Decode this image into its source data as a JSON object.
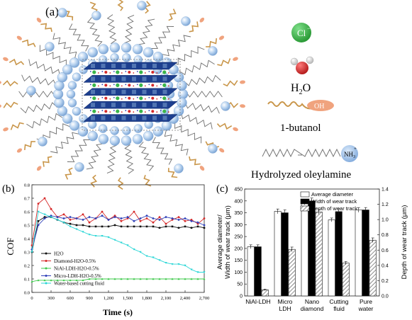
{
  "panel_a": {
    "label": "(a)",
    "legend": {
      "chloride": "Cl",
      "chloride_charge": "−",
      "water": "H",
      "water_sub": "2",
      "water_end": "O",
      "butanol_group": "OH",
      "butanol_label": "1-butanol",
      "oleylamine_group": "NH",
      "oleylamine_sub": "3",
      "oleylamine_charge": "+",
      "oleylamine_label": "Hydrolyzed oleylamine"
    },
    "colors": {
      "chloride": "#3bb54a",
      "water_oxygen": "#d42a2a",
      "butanol_tail": "#c9964a",
      "butanol_head": "#f0a37e",
      "oleylamine_head": "#8fb8e6",
      "ldh_layer": "#1d3f8f",
      "micelle_sphere": "#9ec1e8"
    }
  },
  "panel_b": {
    "label": "(b)",
    "chart_data": {
      "type": "line",
      "xlabel": "Time (s)",
      "ylabel": "COF",
      "xlim": [
        0,
        2700
      ],
      "ylim": [
        0,
        0.8
      ],
      "x_ticks": [
        "0",
        "300",
        "600",
        "900",
        "1,200",
        "1,500",
        "1,800",
        "2,100",
        "2,400",
        "2,700"
      ],
      "y_ticks": [
        "0.0",
        "0.1",
        "0.2",
        "0.3",
        "0.4",
        "0.5",
        "0.6",
        "0.7",
        "0.8"
      ],
      "x": [
        0,
        100,
        200,
        300,
        400,
        500,
        600,
        700,
        800,
        900,
        1000,
        1100,
        1200,
        1300,
        1400,
        1500,
        1600,
        1700,
        1800,
        1900,
        2000,
        2100,
        2200,
        2300,
        2400,
        2500,
        2600,
        2700
      ],
      "series": [
        {
          "name": "H2O",
          "color": "#111111",
          "values": [
            0.3,
            0.53,
            0.56,
            0.56,
            0.54,
            0.52,
            0.51,
            0.5,
            0.5,
            0.49,
            0.49,
            0.49,
            0.49,
            0.5,
            0.49,
            0.49,
            0.49,
            0.49,
            0.49,
            0.49,
            0.48,
            0.49,
            0.49,
            0.48,
            0.49,
            0.48,
            0.49,
            0.48
          ]
        },
        {
          "name": "Diamond-H2O-0.5%",
          "color": "#d62828",
          "values": [
            0.35,
            0.66,
            0.7,
            0.62,
            0.56,
            0.58,
            0.54,
            0.55,
            0.58,
            0.52,
            0.55,
            0.6,
            0.54,
            0.57,
            0.53,
            0.55,
            0.6,
            0.53,
            0.55,
            0.52,
            0.56,
            0.51,
            0.54,
            0.56,
            0.53,
            0.54,
            0.51,
            0.55
          ]
        },
        {
          "name": "NiAl-LDH-H2O-0.5%",
          "color": "#3cc84a",
          "values": [
            0.08,
            0.09,
            0.09,
            0.09,
            0.09,
            0.09,
            0.09,
            0.09,
            0.09,
            0.1,
            0.1,
            0.1,
            0.1,
            0.1,
            0.1,
            0.1,
            0.1,
            0.1,
            0.1,
            0.1,
            0.1,
            0.1,
            0.1,
            0.1,
            0.1,
            0.1,
            0.1,
            0.1
          ]
        },
        {
          "name": "Micro-LDH-H2O-0.5%",
          "color": "#2e3fb8",
          "values": [
            0.32,
            0.5,
            0.55,
            0.57,
            0.56,
            0.55,
            0.56,
            0.55,
            0.54,
            0.56,
            0.55,
            0.57,
            0.54,
            0.56,
            0.55,
            0.56,
            0.53,
            0.55,
            0.57,
            0.55,
            0.54,
            0.56,
            0.55,
            0.54,
            0.55,
            0.53,
            0.52,
            0.5
          ]
        },
        {
          "name": "Water-based cutting fluid",
          "color": "#2ad6d6",
          "values": [
            0.3,
            0.6,
            0.58,
            0.56,
            0.54,
            0.52,
            0.49,
            0.47,
            0.45,
            0.43,
            0.42,
            0.42,
            0.41,
            0.39,
            0.37,
            0.35,
            0.32,
            0.3,
            0.27,
            0.26,
            0.24,
            0.22,
            0.21,
            0.21,
            0.2,
            0.17,
            0.15,
            0.15
          ]
        }
      ],
      "legend_placement": "lower-left",
      "grid": false
    }
  },
  "panel_c": {
    "label": "(c)",
    "chart_data": {
      "type": "bar",
      "categories": [
        "NiAl-LDH",
        "Micro LDH",
        "Nano diamond",
        "Cutting fluid",
        "Pure water"
      ],
      "category_lines": [
        [
          "NiAl-LDH"
        ],
        [
          "Micro",
          "LDH"
        ],
        [
          "Nano",
          "diamond"
        ],
        [
          "Cutting",
          "fluid"
        ],
        [
          "Pure",
          "water"
        ]
      ],
      "ylabel_left_1": "Average diameter/",
      "ylabel_left_2": "Width of wear track (μm)",
      "ylabel_right": "Depth of wear track (μm)",
      "ylim_left": [
        0,
        450
      ],
      "ylim_right": [
        0,
        1.4
      ],
      "y_ticks_left": [
        "0",
        "50",
        "100",
        "150",
        "200",
        "250",
        "300",
        "350",
        "400",
        "450"
      ],
      "y_ticks_right": [
        "0.0",
        "0.2",
        "0.4",
        "0.6",
        "0.8",
        "1.0",
        "1.2",
        "1.4"
      ],
      "series": [
        {
          "name": "Average diameter",
          "axis": "left",
          "fill": "#ffffff",
          "values": [
            207,
            356,
            393,
            320,
            362
          ],
          "errors": [
            8,
            10,
            10,
            8,
            10
          ]
        },
        {
          "name": "Width of wear track",
          "axis": "left",
          "fill": "#000000",
          "values": [
            207,
            350,
            400,
            355,
            362
          ],
          "errors": [
            8,
            12,
            12,
            12,
            10
          ]
        },
        {
          "name": "Depth of wear track",
          "axis": "right",
          "fill": "hatch",
          "values": [
            0.08,
            0.61,
            1.1,
            0.43,
            0.73
          ],
          "errors": [
            0.01,
            0.03,
            0.03,
            0.02,
            0.03
          ]
        }
      ],
      "legend_placement": "top-right"
    }
  }
}
